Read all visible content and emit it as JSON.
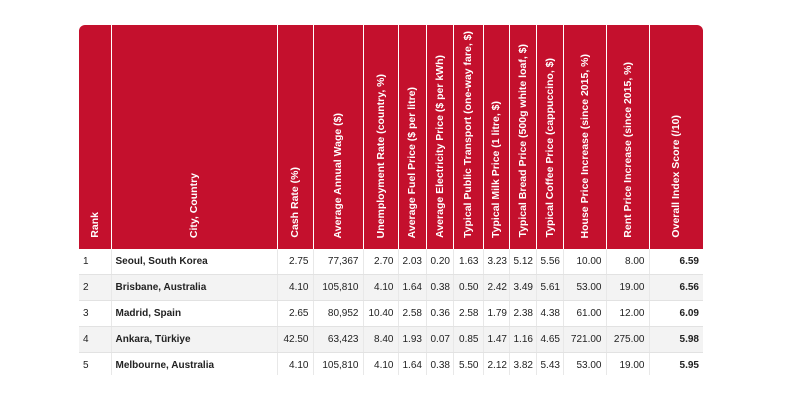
{
  "table": {
    "headers": [
      "Rank",
      "City, Country",
      "Cash Rate (%)",
      "Average Annual Wage ($)",
      "Unemployment Rate (country, %)",
      "Average Fuel Price ($ per litre)",
      "Average Electricity Price ($ per kWh)",
      "Typical Public Transport (one-way fare, $)",
      "Typical Milk Price (1 litre, $)",
      "Typical Bread Price (500g white loaf, $)",
      "Typical Coffee Price (cappuccino, $)",
      "House Price Increase (since 2015, %)",
      "Rent Price Increase (since 2015, %)",
      "Overall Index Score (/10)"
    ],
    "rows": [
      [
        "1",
        "Seoul, South Korea",
        "2.75",
        "77,367",
        "2.70",
        "2.03",
        "0.20",
        "1.63",
        "3.23",
        "5.12",
        "5.56",
        "10.00",
        "8.00",
        "6.59"
      ],
      [
        "2",
        "Brisbane, Australia",
        "4.10",
        "105,810",
        "4.10",
        "1.64",
        "0.38",
        "0.50",
        "2.42",
        "3.49",
        "5.61",
        "53.00",
        "19.00",
        "6.56"
      ],
      [
        "3",
        "Madrid, Spain",
        "2.65",
        "80,952",
        "10.40",
        "2.58",
        "0.36",
        "2.58",
        "1.79",
        "2.38",
        "4.38",
        "61.00",
        "12.00",
        "6.09"
      ],
      [
        "4",
        "Ankara, Türkiye",
        "42.50",
        "63,423",
        "8.40",
        "1.93",
        "0.07",
        "0.85",
        "1.47",
        "1.16",
        "4.65",
        "721.00",
        "275.00",
        "5.98"
      ],
      [
        "5",
        "Melbourne, Australia",
        "4.10",
        "105,810",
        "4.10",
        "1.64",
        "0.38",
        "5.50",
        "2.12",
        "3.82",
        "5.43",
        "53.00",
        "19.00",
        "5.95"
      ]
    ]
  }
}
